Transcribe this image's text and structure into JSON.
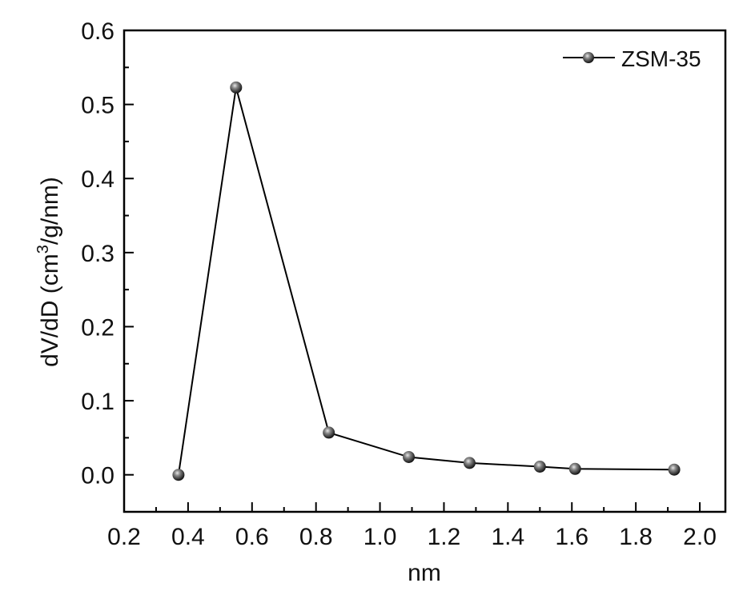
{
  "chart_data": {
    "type": "line",
    "title": "",
    "xlabel": "nm",
    "ylabel": "dV/dD (cm",
    "ylabel_sup": "3",
    "ylabel_tail": "/g/nm)",
    "xlim": [
      0.2,
      2.08
    ],
    "ylim": [
      -0.05,
      0.6
    ],
    "xticks": [
      "0.2",
      "0.4",
      "0.6",
      "0.8",
      "1.0",
      "1.2",
      "1.4",
      "1.6",
      "1.8",
      "2.0"
    ],
    "yticks": [
      "0.0",
      "0.1",
      "0.2",
      "0.3",
      "0.4",
      "0.5",
      "0.6"
    ],
    "grid": false,
    "legend_position": "top-right",
    "series": [
      {
        "name": "ZSM-35",
        "color": "#000000",
        "marker": "sphere",
        "x": [
          0.37,
          0.55,
          0.84,
          1.09,
          1.28,
          1.5,
          1.61,
          1.92
        ],
        "y": [
          0.0,
          0.523,
          0.057,
          0.024,
          0.016,
          0.011,
          0.008,
          0.007
        ]
      }
    ]
  }
}
